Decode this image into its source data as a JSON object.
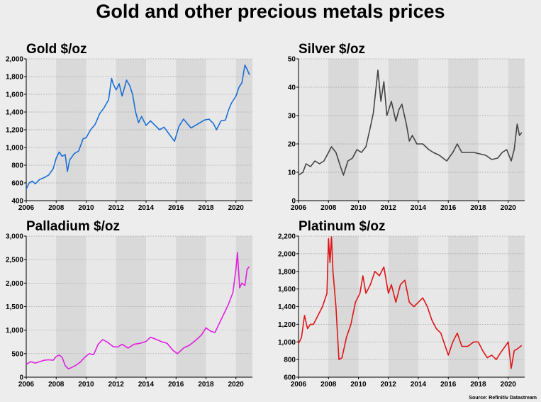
{
  "title": "Gold and other precious metals prices",
  "source": "Source: Refinitiv Datastream",
  "colors": {
    "background": "#ededed",
    "plot_light": "#e8e8e8",
    "plot_shade": "#d9d9d9",
    "grid": "#9a9a9a"
  },
  "chart_data": [
    {
      "type": "line",
      "title": "Gold $/oz",
      "color": "#1a6fd6",
      "xlim": [
        2006,
        2021.1
      ],
      "ylim": [
        400,
        2000
      ],
      "xticks": [
        2006,
        2008,
        2010,
        2012,
        2014,
        2016,
        2018,
        2020
      ],
      "xtick_labels": [
        "2006",
        "2008",
        "2010",
        "2012",
        "2014",
        "2016",
        "2018",
        "2020"
      ],
      "yticks": [
        400,
        600,
        800,
        1000,
        1200,
        1400,
        1600,
        1800,
        2000
      ],
      "ytick_labels": [
        "400",
        "600",
        "800",
        "1,000",
        "1,200",
        "1,400",
        "1,600",
        "1,800",
        "2,000"
      ],
      "x": [
        2006.0,
        2006.2,
        2006.4,
        2006.6,
        2006.9,
        2007.2,
        2007.5,
        2007.8,
        2008.0,
        2008.2,
        2008.4,
        2008.6,
        2008.75,
        2008.9,
        2009.2,
        2009.5,
        2009.8,
        2010.0,
        2010.3,
        2010.6,
        2010.9,
        2011.2,
        2011.5,
        2011.7,
        2011.8,
        2012.0,
        2012.2,
        2012.4,
        2012.7,
        2012.9,
        2013.1,
        2013.3,
        2013.5,
        2013.7,
        2014.0,
        2014.3,
        2014.6,
        2014.9,
        2015.2,
        2015.5,
        2015.9,
        2016.2,
        2016.5,
        2016.8,
        2017.0,
        2017.3,
        2017.6,
        2017.9,
        2018.2,
        2018.5,
        2018.7,
        2019.0,
        2019.3,
        2019.5,
        2019.7,
        2020.0,
        2020.2,
        2020.4,
        2020.6,
        2020.75,
        2020.9
      ],
      "y": [
        530,
        600,
        620,
        590,
        640,
        660,
        690,
        760,
        880,
        950,
        900,
        920,
        730,
        860,
        930,
        960,
        1100,
        1110,
        1200,
        1260,
        1380,
        1450,
        1540,
        1780,
        1720,
        1650,
        1720,
        1580,
        1760,
        1700,
        1600,
        1400,
        1280,
        1350,
        1250,
        1300,
        1250,
        1200,
        1230,
        1160,
        1070,
        1240,
        1320,
        1260,
        1220,
        1250,
        1280,
        1310,
        1320,
        1270,
        1200,
        1300,
        1310,
        1420,
        1500,
        1580,
        1680,
        1730,
        1930,
        1880,
        1820
      ]
    },
    {
      "type": "line",
      "title": "Silver $/oz",
      "color": "#444444",
      "xlim": [
        2006,
        2021.1
      ],
      "ylim": [
        0,
        50
      ],
      "xticks": [
        2006,
        2008,
        2010,
        2012,
        2014,
        2016,
        2018,
        2020
      ],
      "xtick_labels": [
        "2006",
        "2008",
        "2010",
        "2012",
        "2014",
        "2016",
        "2018",
        "2020"
      ],
      "yticks": [
        0,
        10,
        20,
        30,
        40,
        50
      ],
      "ytick_labels": [
        "0",
        "10",
        "20",
        "30",
        "40",
        "50"
      ],
      "x": [
        2006.0,
        2006.3,
        2006.5,
        2006.8,
        2007.1,
        2007.4,
        2007.7,
        2008.0,
        2008.2,
        2008.5,
        2008.8,
        2009.0,
        2009.3,
        2009.6,
        2009.9,
        2010.2,
        2010.5,
        2010.8,
        2011.0,
        2011.3,
        2011.5,
        2011.7,
        2011.9,
        2012.2,
        2012.5,
        2012.7,
        2012.9,
        2013.2,
        2013.4,
        2013.6,
        2013.9,
        2014.3,
        2014.7,
        2015.0,
        2015.4,
        2015.9,
        2016.3,
        2016.6,
        2016.9,
        2017.3,
        2017.7,
        2018.1,
        2018.5,
        2018.9,
        2019.3,
        2019.6,
        2019.9,
        2020.2,
        2020.4,
        2020.6,
        2020.75,
        2020.9
      ],
      "y": [
        9,
        10,
        13,
        12,
        14,
        13,
        14,
        17,
        19,
        17,
        12,
        9,
        14,
        15,
        18,
        17,
        19,
        26,
        31,
        46,
        35,
        42,
        30,
        35,
        28,
        32,
        34,
        27,
        21,
        23,
        20,
        20,
        18,
        17,
        16,
        14,
        17,
        20,
        17,
        17,
        17,
        16.5,
        16,
        14.5,
        15,
        17,
        18,
        14,
        18,
        27,
        23,
        24
      ]
    },
    {
      "type": "line",
      "title": "Palladium $/oz",
      "color": "#e020e0",
      "xlim": [
        2006,
        2021.1
      ],
      "ylim": [
        0,
        3000
      ],
      "xticks": [
        2006,
        2008,
        2010,
        2012,
        2014,
        2016,
        2018,
        2020
      ],
      "xtick_labels": [
        "2006",
        "2008",
        "2010",
        "2012",
        "2014",
        "2016",
        "2018",
        "2020"
      ],
      "yticks": [
        0,
        500,
        1000,
        1500,
        2000,
        2500,
        3000
      ],
      "ytick_labels": [
        "0",
        "500",
        "1,000",
        "1,500",
        "2,000",
        "2,500",
        "3,000"
      ],
      "x": [
        2006.0,
        2006.3,
        2006.6,
        2006.9,
        2007.2,
        2007.5,
        2007.8,
        2008.0,
        2008.2,
        2008.4,
        2008.6,
        2008.8,
        2009.0,
        2009.3,
        2009.6,
        2009.9,
        2010.2,
        2010.5,
        2010.8,
        2011.1,
        2011.4,
        2011.8,
        2012.1,
        2012.4,
        2012.8,
        2013.2,
        2013.6,
        2014.0,
        2014.3,
        2014.7,
        2015.0,
        2015.4,
        2015.8,
        2016.1,
        2016.5,
        2016.9,
        2017.3,
        2017.7,
        2018.0,
        2018.3,
        2018.6,
        2018.9,
        2019.2,
        2019.5,
        2019.8,
        2020.0,
        2020.1,
        2020.25,
        2020.4,
        2020.6,
        2020.75,
        2020.9
      ],
      "y": [
        270,
        330,
        300,
        330,
        360,
        370,
        360,
        440,
        470,
        420,
        250,
        180,
        200,
        250,
        320,
        420,
        500,
        480,
        700,
        800,
        750,
        650,
        640,
        700,
        620,
        700,
        720,
        760,
        850,
        800,
        760,
        720,
        570,
        500,
        620,
        680,
        780,
        900,
        1050,
        980,
        950,
        1150,
        1350,
        1550,
        1800,
        2300,
        2650,
        1900,
        2000,
        1950,
        2300,
        2350
      ]
    },
    {
      "type": "line",
      "title": "Platinum $/oz",
      "color": "#dd1515",
      "xlim": [
        2006,
        2021.1
      ],
      "ylim": [
        600,
        2200
      ],
      "xticks": [
        2006,
        2008,
        2010,
        2012,
        2014,
        2016,
        2018,
        2020
      ],
      "xtick_labels": [
        "2006",
        "2008",
        "2010",
        "2012",
        "2014",
        "2016",
        "2018",
        "2020"
      ],
      "yticks": [
        600,
        800,
        1000,
        1200,
        1400,
        1600,
        1800,
        2000,
        2200
      ],
      "ytick_labels": [
        "600",
        "800",
        "1,000",
        "1,200",
        "1,400",
        "1,600",
        "1,800",
        "2,000",
        "2,200"
      ],
      "x": [
        2006.0,
        2006.2,
        2006.4,
        2006.6,
        2006.8,
        2007.0,
        2007.3,
        2007.6,
        2007.9,
        2008.0,
        2008.1,
        2008.2,
        2008.3,
        2008.5,
        2008.7,
        2008.9,
        2009.2,
        2009.5,
        2009.8,
        2010.1,
        2010.3,
        2010.5,
        2010.8,
        2011.1,
        2011.4,
        2011.7,
        2012.0,
        2012.2,
        2012.5,
        2012.8,
        2013.1,
        2013.4,
        2013.7,
        2014.0,
        2014.3,
        2014.6,
        2014.9,
        2015.2,
        2015.5,
        2015.8,
        2016.0,
        2016.3,
        2016.6,
        2016.9,
        2017.3,
        2017.7,
        2018.0,
        2018.3,
        2018.6,
        2018.9,
        2019.2,
        2019.5,
        2019.8,
        2020.0,
        2020.2,
        2020.4,
        2020.6,
        2020.9
      ],
      "y": [
        980,
        1050,
        1300,
        1150,
        1200,
        1200,
        1300,
        1400,
        1550,
        2170,
        1900,
        2190,
        1800,
        1400,
        800,
        820,
        1050,
        1200,
        1450,
        1550,
        1750,
        1550,
        1650,
        1800,
        1750,
        1850,
        1550,
        1650,
        1450,
        1650,
        1700,
        1450,
        1400,
        1450,
        1500,
        1400,
        1250,
        1150,
        1100,
        950,
        850,
        1000,
        1100,
        950,
        950,
        1000,
        1000,
        900,
        820,
        850,
        800,
        880,
        950,
        1000,
        700,
        900,
        920,
        960
      ]
    }
  ]
}
